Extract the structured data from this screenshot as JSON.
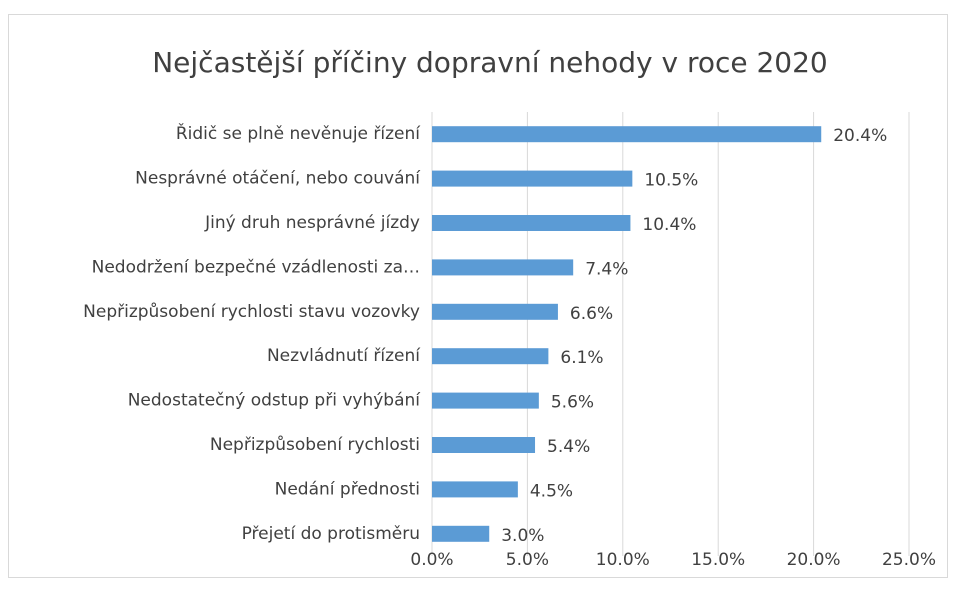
{
  "chart_data": {
    "type": "bar",
    "orientation": "horizontal",
    "title": "Nejčastější příčiny dopravní nehody v roce 2020",
    "categories": [
      "Řidič se plně nevěnuje řízení",
      "Nesprávné otáčení, nebo couvání",
      "Jiný druh nesprávné jízdy",
      "Nedodržení bezpečné vzádlenosti za…",
      "Nepřizpůsobení rychlosti stavu vozovky",
      "Nezvládnutí řízení",
      "Nedostatečný odstup při vyhýbání",
      "Nepřizpůsobení rychlosti",
      "Nedání přednosti",
      "Přejetí do protisměru"
    ],
    "values": [
      20.4,
      10.5,
      10.4,
      7.4,
      6.6,
      6.1,
      5.6,
      5.4,
      4.5,
      3.0
    ],
    "value_labels": [
      "20.4%",
      "10.5%",
      "10.4%",
      "7.4%",
      "6.6%",
      "6.1%",
      "5.6%",
      "5.4%",
      "4.5%",
      "3.0%"
    ],
    "color": "#5b9bd5",
    "xlim": [
      0,
      25
    ],
    "xticks": [
      {
        "value": 0,
        "label": "0.0%"
      },
      {
        "value": 5,
        "label": "5.0%"
      },
      {
        "value": 10,
        "label": "10.0%"
      },
      {
        "value": 15,
        "label": "15.0%"
      },
      {
        "value": 20,
        "label": "20.0%"
      },
      {
        "value": 25,
        "label": "25.0%"
      }
    ],
    "grid": true
  }
}
